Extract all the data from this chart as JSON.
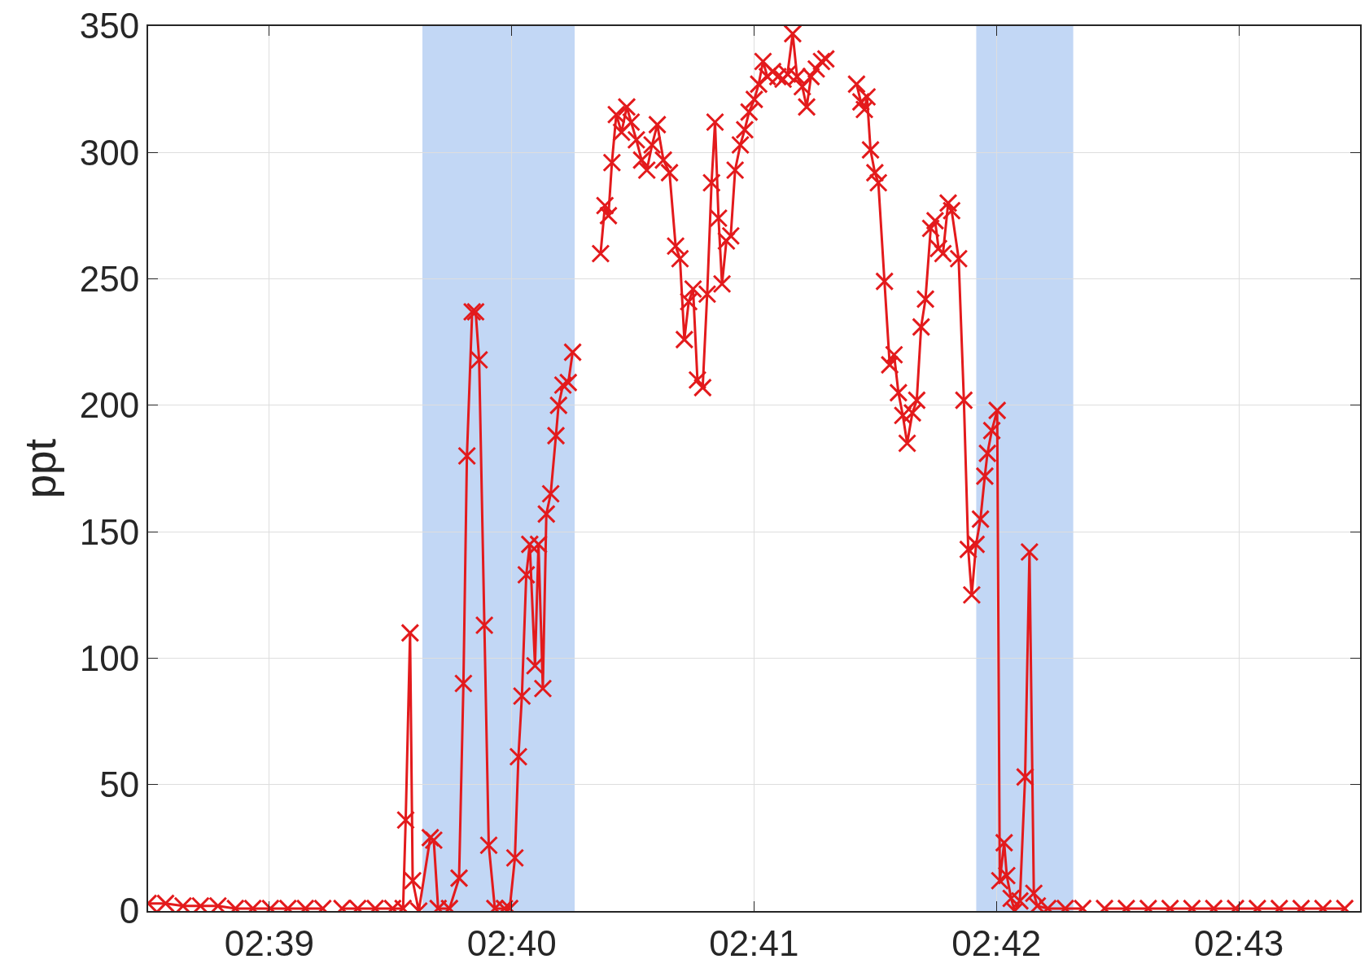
{
  "chart_data": {
    "type": "line",
    "ylabel": "ppt",
    "marker": "cross",
    "line_style": "solid",
    "grid": true,
    "xlim": [
      2.64167,
      2.725
    ],
    "xticks": [
      {
        "value": 2.65,
        "label": "02:39"
      },
      {
        "value": 2.66667,
        "label": "02:40"
      },
      {
        "value": 2.68333,
        "label": "02:41"
      },
      {
        "value": 2.7,
        "label": "02:42"
      },
      {
        "value": 2.71667,
        "label": "02:43"
      }
    ],
    "ylim": [
      0,
      350
    ],
    "yticks": [
      0,
      50,
      100,
      150,
      200,
      250,
      300,
      350
    ],
    "bands": [
      {
        "axis": "x",
        "from": 2.66053,
        "to": 2.671,
        "color": "#c2d7f5"
      },
      {
        "axis": "x",
        "from": 2.69861,
        "to": 2.70528,
        "color": "#c2d7f5"
      }
    ],
    "x": [
      2.64167,
      2.64287,
      2.64407,
      2.64527,
      2.64647,
      2.64767,
      2.64887,
      2.65008,
      2.65128,
      2.65248,
      2.65368,
      2.65428,
      2.655,
      2.65608,
      2.65728,
      2.65848,
      2.6592,
      2.65938,
      2.65968,
      2.65986,
      2.66028,
      2.66107,
      2.66131,
      2.66161,
      2.66239,
      2.66305,
      2.66335,
      2.66359,
      2.66395,
      2.66419,
      2.66443,
      2.66479,
      2.66509,
      2.66551,
      2.66617,
      2.66653,
      2.66689,
      2.66713,
      2.66737,
      2.66767,
      2.66791,
      2.66827,
      2.66851,
      2.66881,
      2.66905,
      2.66935,
      2.66971,
      2.66989,
      2.67019,
      2.67056,
      2.67086,
      2.6717,
      2.67278,
      2.67308,
      2.67332,
      2.67356,
      2.67386,
      2.67422,
      2.67458,
      2.67488,
      2.67524,
      2.6756,
      2.67596,
      2.67632,
      2.67668,
      2.6771,
      2.67752,
      2.67794,
      2.67824,
      2.67854,
      2.67884,
      2.67914,
      2.67944,
      2.6798,
      2.68011,
      2.68041,
      2.68065,
      2.68089,
      2.68113,
      2.68143,
      2.68173,
      2.68203,
      2.68239,
      2.68269,
      2.68299,
      2.68335,
      2.68365,
      2.68395,
      2.68425,
      2.68461,
      2.68497,
      2.68533,
      2.68563,
      2.68599,
      2.68629,
      2.68665,
      2.68695,
      2.68725,
      2.68761,
      2.68797,
      2.68827,
      2.68911,
      2.69038,
      2.69068,
      2.69092,
      2.6911,
      2.69134,
      2.69164,
      2.69188,
      2.6923,
      2.69266,
      2.69296,
      2.69326,
      2.69356,
      2.69386,
      2.69422,
      2.69452,
      2.69482,
      2.69512,
      2.69548,
      2.69578,
      2.69602,
      2.69632,
      2.69668,
      2.69692,
      2.6974,
      2.69776,
      2.69806,
      2.6983,
      2.6986,
      2.6989,
      2.6992,
      2.69938,
      2.69968,
      2.70005,
      2.70023,
      2.70053,
      2.70071,
      2.70101,
      2.70125,
      2.70161,
      2.70197,
      2.70227,
      2.70257,
      2.70281,
      2.70353,
      2.70473,
      2.70593,
      2.70665,
      2.70743,
      2.70893,
      2.71044,
      2.71194,
      2.71344,
      2.71494,
      2.71644,
      2.71794,
      2.71945,
      2.72095,
      2.72245,
      2.72395
    ],
    "series": [
      {
        "color": "#e31a1c",
        "values": [
          3,
          3,
          2,
          2,
          2,
          1,
          1,
          1,
          1,
          1,
          1,
          null,
          1,
          1,
          1,
          1,
          1,
          36,
          110,
          12,
          0,
          29,
          28,
          1,
          1,
          13,
          90,
          180,
          237,
          237,
          218,
          113,
          26,
          1,
          1,
          1,
          21,
          61,
          85,
          133,
          145,
          97,
          145,
          88,
          157,
          165,
          188,
          200,
          208,
          209,
          221,
          null,
          260,
          279,
          275,
          296,
          315,
          308,
          318,
          312,
          305,
          297,
          293,
          303,
          311,
          297,
          292,
          263,
          258,
          226,
          241,
          246,
          210,
          207,
          244,
          288,
          312,
          274,
          248,
          265,
          267,
          293,
          303,
          309,
          316,
          321,
          327,
          336,
          330,
          332,
          330,
          329,
          331,
          347,
          330,
          326,
          318,
          330,
          333,
          336,
          337,
          null,
          327,
          320,
          317,
          322,
          301,
          292,
          288,
          249,
          216,
          220,
          205,
          196,
          185,
          197,
          202,
          231,
          242,
          270,
          273,
          262,
          260,
          280,
          277,
          258,
          202,
          143,
          125,
          145,
          155,
          172,
          181,
          190,
          198,
          12,
          27,
          14,
          5,
          0,
          4,
          53,
          142,
          7,
          2,
          1,
          1,
          1,
          null,
          1,
          1,
          1,
          1,
          1,
          1,
          1,
          1,
          1,
          1,
          1,
          1
        ]
      }
    ]
  }
}
